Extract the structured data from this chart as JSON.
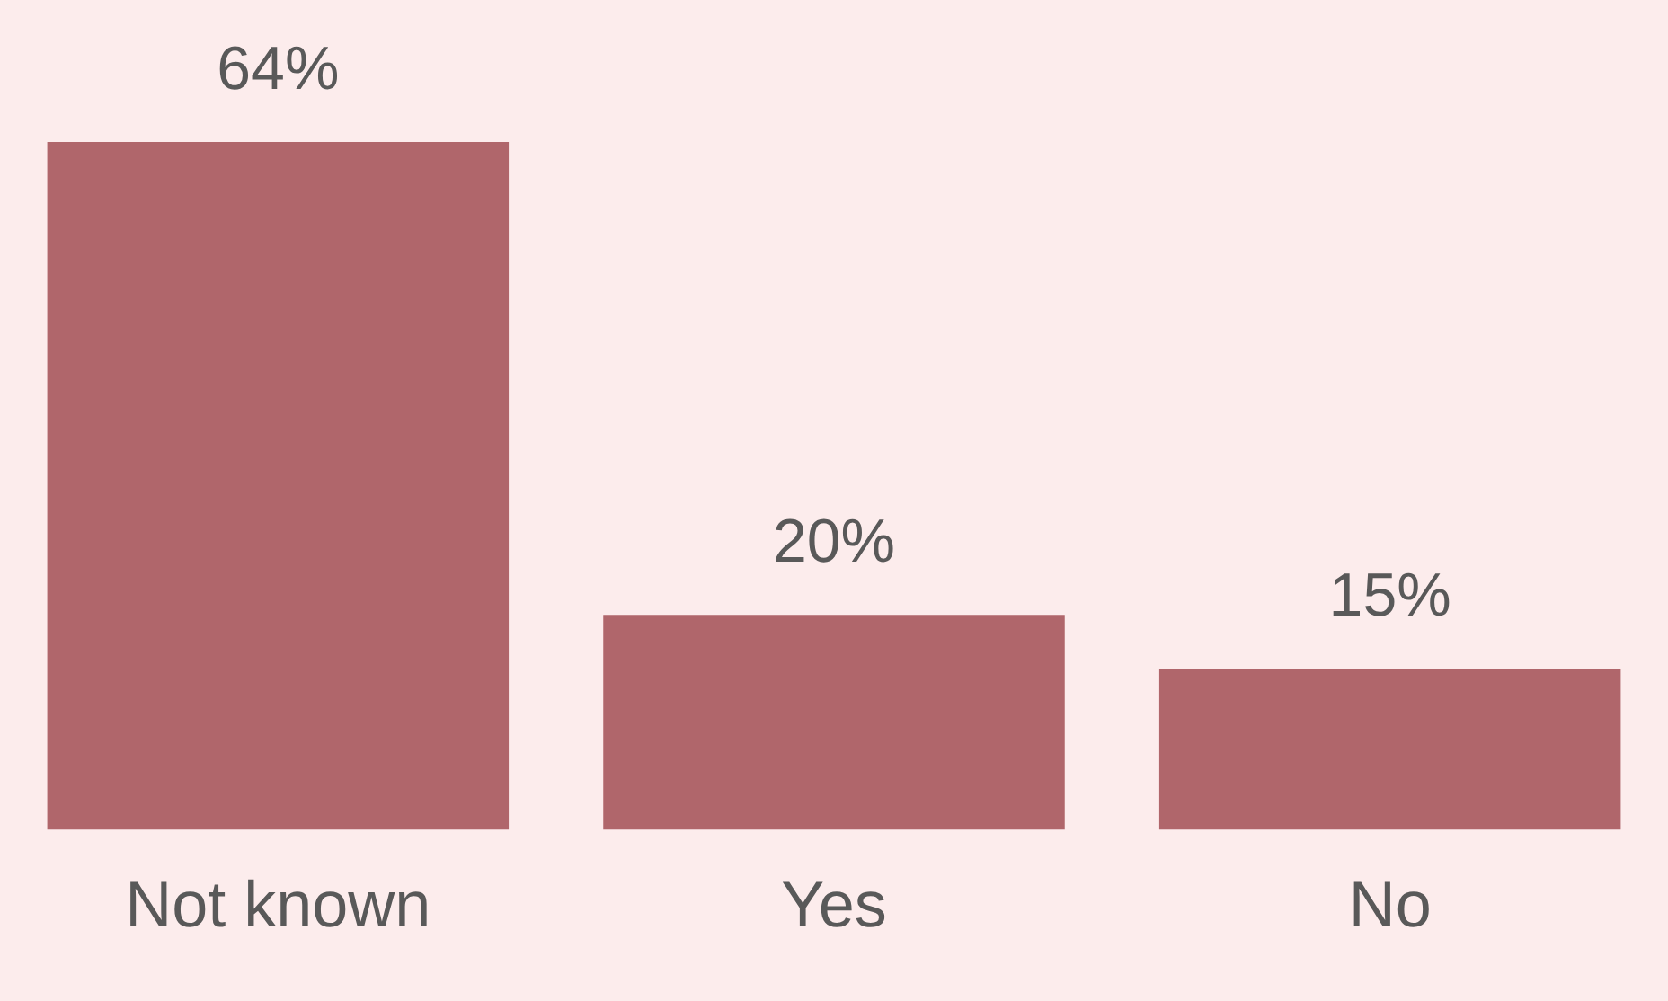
{
  "chart_data": {
    "type": "bar",
    "categories": [
      "Not known",
      "Yes",
      "No"
    ],
    "values": [
      64,
      20,
      15
    ],
    "value_labels": [
      "64%",
      "20%",
      "15%"
    ],
    "color": "#b0666b",
    "tick_labels": "x"
  }
}
